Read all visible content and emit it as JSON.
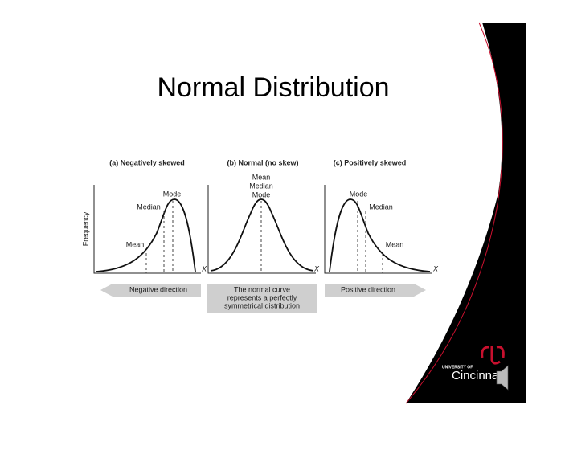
{
  "title": "Normal Distribution",
  "panels": [
    {
      "heading": "(a) Negatively skewed",
      "y_axis_label": "Frequency",
      "x_axis_label": "X",
      "labels": [
        "Mode",
        "Median",
        "Mean"
      ],
      "direction": "Negative direction"
    },
    {
      "heading": "(b) Normal (no skew)",
      "x_axis_label": "X",
      "labels": [
        "Mean",
        "Median",
        "Mode"
      ],
      "note": [
        "The normal curve",
        "represents a perfectly",
        "symmetrical distribution"
      ]
    },
    {
      "heading": "(c) Positively skewed",
      "x_axis_label": "X",
      "labels": [
        "Mode",
        "Median",
        "Mean"
      ],
      "direction": "Positive direction"
    }
  ],
  "logo": {
    "small": "UNIVERSITY OF",
    "name": "Cincinnati"
  }
}
